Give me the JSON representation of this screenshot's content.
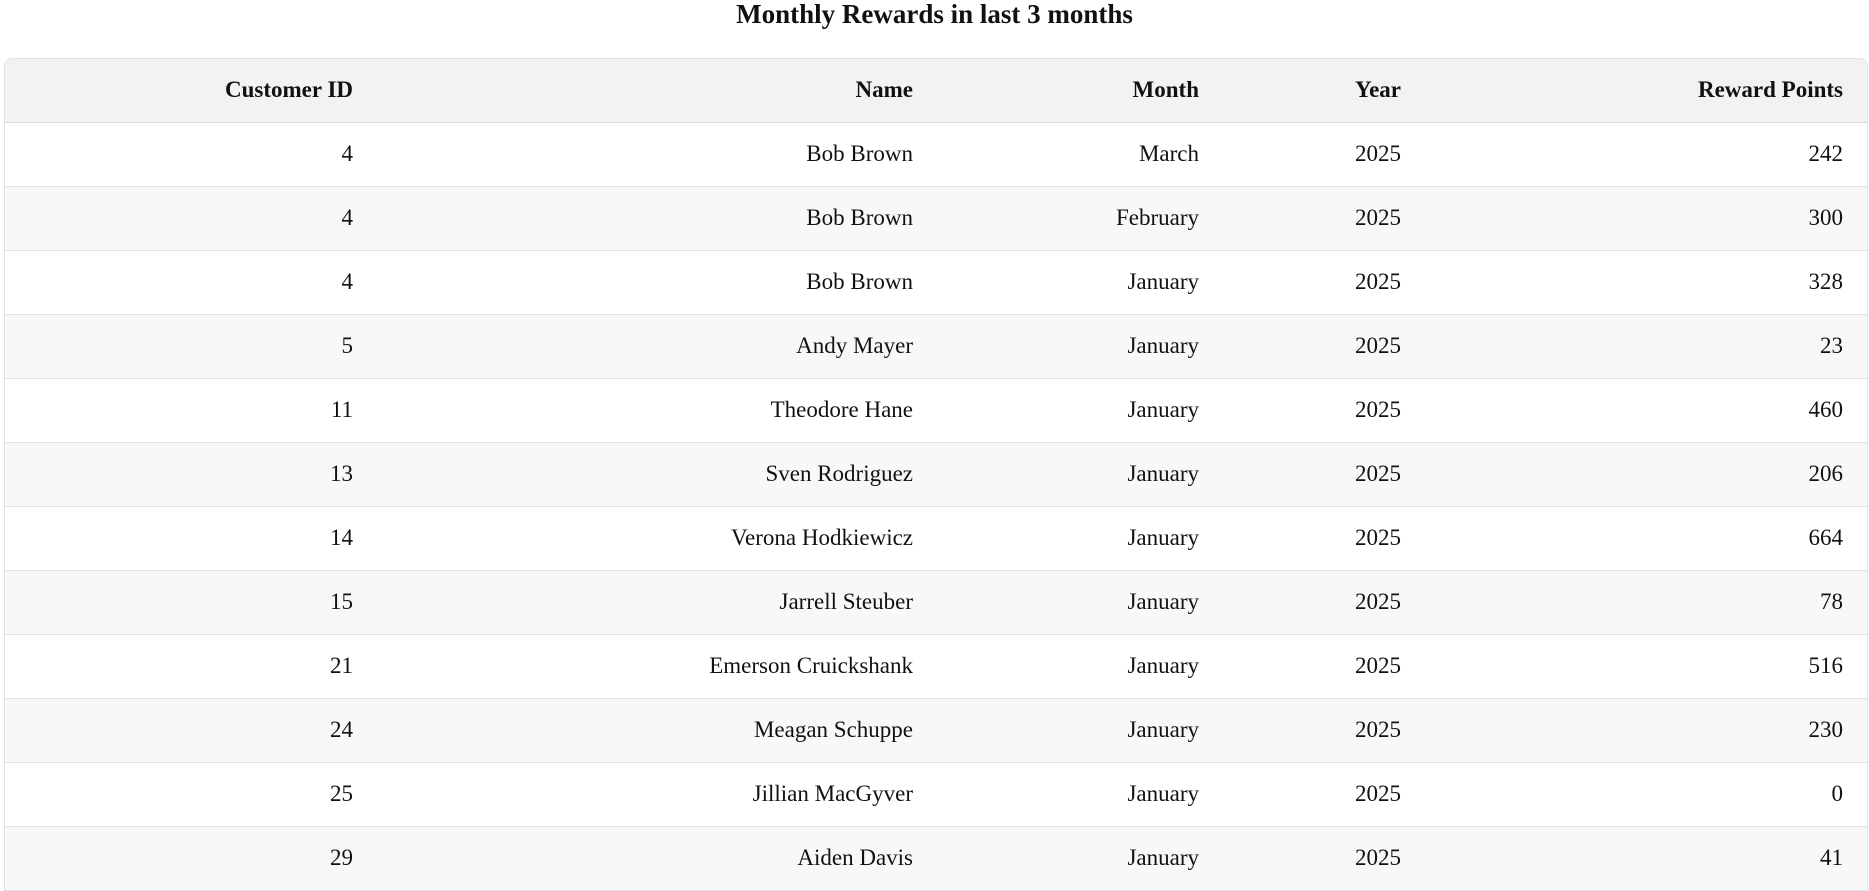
{
  "page": {
    "title": "Monthly Rewards in last 3 months"
  },
  "table": {
    "headers": {
      "customer_id": "Customer ID",
      "name": "Name",
      "month": "Month",
      "year": "Year",
      "reward_points": "Reward Points"
    },
    "rows": [
      {
        "customer_id": "4",
        "name": "Bob Brown",
        "month": "March",
        "year": "2025",
        "reward_points": "242"
      },
      {
        "customer_id": "4",
        "name": "Bob Brown",
        "month": "February",
        "year": "2025",
        "reward_points": "300"
      },
      {
        "customer_id": "4",
        "name": "Bob Brown",
        "month": "January",
        "year": "2025",
        "reward_points": "328"
      },
      {
        "customer_id": "5",
        "name": "Andy Mayer",
        "month": "January",
        "year": "2025",
        "reward_points": "23"
      },
      {
        "customer_id": "11",
        "name": "Theodore Hane",
        "month": "January",
        "year": "2025",
        "reward_points": "460"
      },
      {
        "customer_id": "13",
        "name": "Sven Rodriguez",
        "month": "January",
        "year": "2025",
        "reward_points": "206"
      },
      {
        "customer_id": "14",
        "name": "Verona Hodkiewicz",
        "month": "January",
        "year": "2025",
        "reward_points": "664"
      },
      {
        "customer_id": "15",
        "name": "Jarrell Steuber",
        "month": "January",
        "year": "2025",
        "reward_points": "78"
      },
      {
        "customer_id": "21",
        "name": "Emerson Cruickshank",
        "month": "January",
        "year": "2025",
        "reward_points": "516"
      },
      {
        "customer_id": "24",
        "name": "Meagan Schuppe",
        "month": "January",
        "year": "2025",
        "reward_points": "230"
      },
      {
        "customer_id": "25",
        "name": "Jillian MacGyver",
        "month": "January",
        "year": "2025",
        "reward_points": "0"
      },
      {
        "customer_id": "29",
        "name": "Aiden Davis",
        "month": "January",
        "year": "2025",
        "reward_points": "41"
      }
    ]
  }
}
